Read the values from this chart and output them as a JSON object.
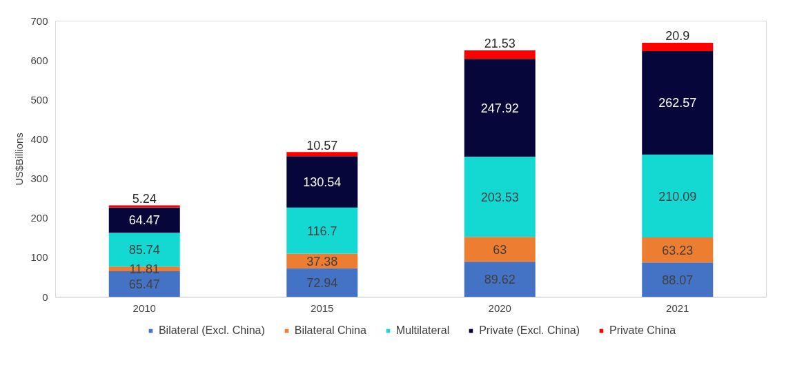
{
  "chart_data": {
    "type": "bar",
    "stacked": true,
    "ylabel": "US$Billions",
    "categories": [
      "2010",
      "2015",
      "2020",
      "2021"
    ],
    "series": [
      {
        "name": "Bilateral (Excl. China)",
        "color": "#4472c4",
        "values": [
          65.47,
          72.94,
          89.62,
          88.07
        ]
      },
      {
        "name": "Bilateral China",
        "color": "#ed7d31",
        "values": [
          11.81,
          37.38,
          63,
          63.23
        ]
      },
      {
        "name": "Multilateral",
        "color": "#14d9d2",
        "values": [
          85.74,
          116.7,
          203.53,
          210.09
        ]
      },
      {
        "name": "Private (Excl. China)",
        "color": "#06063a",
        "values": [
          64.47,
          130.54,
          247.92,
          262.57
        ]
      },
      {
        "name": "Private China",
        "color": "#ff0000",
        "values": [
          5.24,
          10.57,
          21.53,
          20.9
        ]
      }
    ],
    "ylim": [
      0,
      700
    ],
    "yticks": [
      0,
      100,
      200,
      300,
      400,
      500,
      600,
      700
    ],
    "grid": false,
    "legend": "bottom",
    "data_labels": true
  }
}
